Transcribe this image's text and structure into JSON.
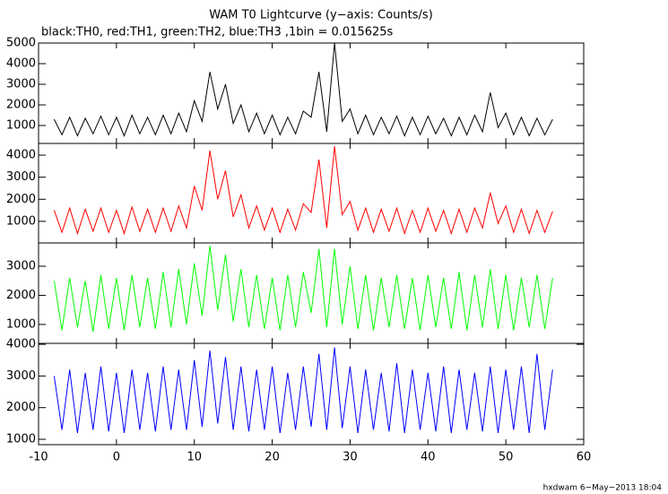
{
  "title": "WAM T0 Lightcurve (y−axis: Counts/s)",
  "subtitle": "black:TH0, red:TH1, green:TH2, blue:TH3 ,1bin = 0.015625s",
  "footer": "hxdwam  6−May−2013 18:04",
  "chart_data": [
    {
      "type": "line",
      "color": "#000000",
      "xlim": [
        -10,
        60
      ],
      "ylim": [
        130,
        5000
      ],
      "yticks": [
        1000,
        2000,
        3000,
        4000,
        5000
      ],
      "x": [
        -8,
        -7,
        -6,
        -5,
        -4,
        -3,
        -2,
        -1,
        0,
        1,
        2,
        3,
        4,
        5,
        6,
        7,
        8,
        9,
        10,
        11,
        12,
        13,
        14,
        15,
        16,
        17,
        18,
        19,
        20,
        21,
        22,
        23,
        24,
        25,
        26,
        27,
        28,
        29,
        30,
        31,
        32,
        33,
        34,
        35,
        36,
        37,
        38,
        39,
        40,
        41,
        42,
        43,
        44,
        45,
        46,
        47,
        48,
        49,
        50,
        51,
        52,
        53,
        54,
        55,
        56
      ],
      "values": [
        1300,
        550,
        1400,
        500,
        1350,
        600,
        1450,
        550,
        1400,
        500,
        1500,
        600,
        1400,
        550,
        1500,
        600,
        1600,
        700,
        2200,
        1200,
        3600,
        1800,
        3000,
        1100,
        2000,
        700,
        1600,
        600,
        1500,
        550,
        1400,
        600,
        1700,
        1400,
        3600,
        700,
        5000,
        1200,
        1800,
        600,
        1500,
        550,
        1400,
        600,
        1450,
        500,
        1400,
        550,
        1450,
        600,
        1350,
        500,
        1400,
        550,
        1500,
        700,
        2600,
        900,
        1600,
        550,
        1400,
        500,
        1350,
        550,
        1300
      ]
    },
    {
      "type": "line",
      "color": "#ff0000",
      "xlim": [
        -10,
        60
      ],
      "ylim": [
        20,
        4530
      ],
      "yticks": [
        1000,
        2000,
        3000,
        4000
      ],
      "x": [
        -8,
        -7,
        -6,
        -5,
        -4,
        -3,
        -2,
        -1,
        0,
        1,
        2,
        3,
        4,
        5,
        6,
        7,
        8,
        9,
        10,
        11,
        12,
        13,
        14,
        15,
        16,
        17,
        18,
        19,
        20,
        21,
        22,
        23,
        24,
        25,
        26,
        27,
        28,
        29,
        30,
        31,
        32,
        33,
        34,
        35,
        36,
        37,
        38,
        39,
        40,
        41,
        42,
        43,
        44,
        45,
        46,
        47,
        48,
        49,
        50,
        51,
        52,
        53,
        54,
        55,
        56
      ],
      "values": [
        1500,
        500,
        1600,
        450,
        1550,
        550,
        1600,
        500,
        1500,
        450,
        1650,
        550,
        1550,
        500,
        1600,
        550,
        1700,
        700,
        2600,
        1500,
        4200,
        2000,
        3300,
        1200,
        2200,
        700,
        1700,
        600,
        1600,
        500,
        1550,
        600,
        1800,
        1400,
        3800,
        700,
        4400,
        1300,
        1900,
        600,
        1600,
        500,
        1550,
        550,
        1600,
        450,
        1500,
        500,
        1600,
        550,
        1500,
        450,
        1550,
        500,
        1600,
        700,
        2300,
        900,
        1700,
        500,
        1550,
        450,
        1500,
        500,
        1450
      ]
    },
    {
      "type": "line",
      "color": "#00ff00",
      "xlim": [
        -10,
        60
      ],
      "ylim": [
        350,
        3800
      ],
      "yticks": [
        1000,
        2000,
        3000
      ],
      "x": [
        -8,
        -7,
        -6,
        -5,
        -4,
        -3,
        -2,
        -1,
        0,
        1,
        2,
        3,
        4,
        5,
        6,
        7,
        8,
        9,
        10,
        11,
        12,
        13,
        14,
        15,
        16,
        17,
        18,
        19,
        20,
        21,
        22,
        23,
        24,
        25,
        26,
        27,
        28,
        29,
        30,
        31,
        32,
        33,
        34,
        35,
        36,
        37,
        38,
        39,
        40,
        41,
        42,
        43,
        44,
        45,
        46,
        47,
        48,
        49,
        50,
        51,
        52,
        53,
        54,
        55,
        56
      ],
      "values": [
        2500,
        800,
        2600,
        900,
        2500,
        750,
        2700,
        850,
        2600,
        800,
        2700,
        900,
        2600,
        850,
        2800,
        900,
        2900,
        1000,
        3100,
        1300,
        3700,
        1500,
        3400,
        1100,
        2900,
        900,
        2700,
        850,
        2600,
        800,
        2700,
        900,
        2800,
        1400,
        3600,
        900,
        3600,
        1000,
        3000,
        850,
        2700,
        800,
        2600,
        900,
        2700,
        850,
        2600,
        800,
        2700,
        900,
        2600,
        850,
        2800,
        800,
        2700,
        900,
        2900,
        850,
        2700,
        800,
        2600,
        900,
        2700,
        850,
        2600
      ]
    },
    {
      "type": "line",
      "color": "#0000ff",
      "xlim": [
        -10,
        60
      ],
      "ylim": [
        830,
        4030
      ],
      "yticks": [
        1000,
        2000,
        3000,
        4000
      ],
      "xticks": [
        -10,
        0,
        10,
        20,
        30,
        40,
        50,
        60
      ],
      "x": [
        -8,
        -7,
        -6,
        -5,
        -4,
        -3,
        -2,
        -1,
        0,
        1,
        2,
        3,
        4,
        5,
        6,
        7,
        8,
        9,
        10,
        11,
        12,
        13,
        14,
        15,
        16,
        17,
        18,
        19,
        20,
        21,
        22,
        23,
        24,
        25,
        26,
        27,
        28,
        29,
        30,
        31,
        32,
        33,
        34,
        35,
        36,
        37,
        38,
        39,
        40,
        41,
        42,
        43,
        44,
        45,
        46,
        47,
        48,
        49,
        50,
        51,
        52,
        53,
        54,
        55,
        56
      ],
      "values": [
        3000,
        1300,
        3200,
        1200,
        3100,
        1300,
        3300,
        1250,
        3100,
        1200,
        3200,
        1300,
        3100,
        1250,
        3300,
        1300,
        3200,
        1300,
        3500,
        1400,
        3800,
        1500,
        3600,
        1300,
        3300,
        1250,
        3200,
        1300,
        3300,
        1200,
        3100,
        1300,
        3300,
        1400,
        3700,
        1300,
        3900,
        1350,
        3300,
        1200,
        3200,
        1300,
        3100,
        1250,
        3400,
        1200,
        3200,
        1300,
        3100,
        1250,
        3300,
        1200,
        3200,
        1300,
        3100,
        1250,
        3300,
        1200,
        3200,
        1300,
        3300,
        1200,
        3700,
        1300,
        3200
      ]
    }
  ]
}
